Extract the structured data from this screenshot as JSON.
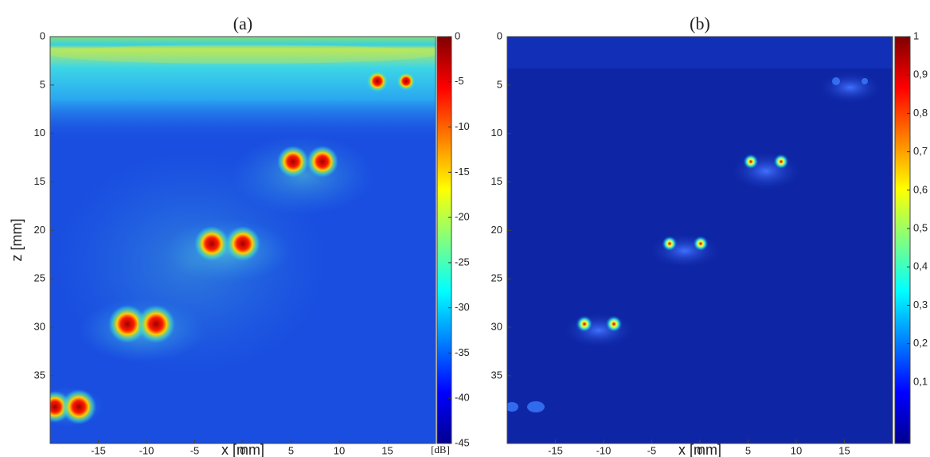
{
  "chart_data": [
    {
      "type": "heatmap",
      "title": "(a)",
      "xlabel": "x [mm]",
      "ylabel": "z [mm]",
      "xlim": [
        -20,
        20
      ],
      "ylim": [
        0,
        42
      ],
      "y_inverted": true,
      "xticks": [
        -15,
        -10,
        -5,
        0,
        5,
        10,
        15
      ],
      "yticks": [
        0,
        5,
        10,
        15,
        20,
        25,
        30,
        35
      ],
      "colorbar": {
        "clim": [
          -45,
          0
        ],
        "ticks": [
          0,
          -5,
          -10,
          -15,
          -20,
          -25,
          -30,
          -35,
          -40,
          -45
        ],
        "unit": "[dB]"
      }
    },
    {
      "type": "heatmap",
      "title": "(b)",
      "xlabel": "x [mm]",
      "xlim": [
        -20,
        20
      ],
      "ylim": [
        0,
        42
      ],
      "y_inverted": true,
      "xticks": [
        -15,
        -10,
        -5,
        0,
        5,
        10,
        15
      ],
      "yticks": [
        0,
        5,
        10,
        15,
        20,
        25,
        30,
        35
      ],
      "colorbar": {
        "clim": [
          -0.06,
          1
        ],
        "ticks": [
          1,
          {
            "value": 0.9,
            "label": "0,9"
          },
          {
            "value": 0.8,
            "label": "0,8"
          },
          {
            "value": 0.7,
            "label": "0,7"
          },
          {
            "value": 0.6,
            "label": "0,6"
          },
          {
            "value": 0.5,
            "label": "0,5"
          },
          {
            "value": 0.4,
            "label": "0,4"
          },
          {
            "value": 0.3,
            "label": "0,3"
          },
          {
            "value": 0.2,
            "label": "0,2"
          },
          {
            "value": 0.1,
            "label": "0,1"
          }
        ]
      }
    }
  ]
}
